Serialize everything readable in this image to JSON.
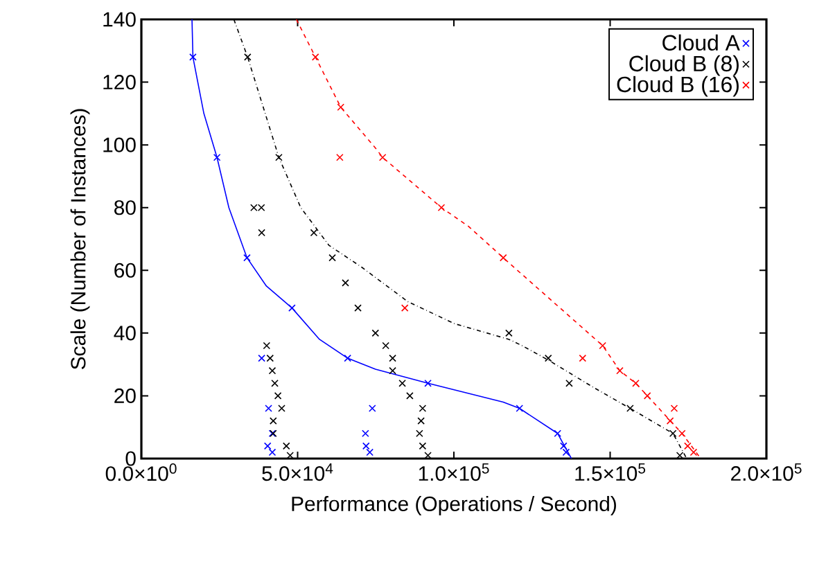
{
  "chart_data": {
    "type": "scatter",
    "xlabel": "Performance (Operations / Second)",
    "ylabel": "Scale (Number of Instances)",
    "xlim": [
      0,
      200000
    ],
    "ylim": [
      0,
      140
    ],
    "xticks": [
      {
        "value": 0,
        "label": "0.0×10$^{0}$"
      },
      {
        "value": 50000,
        "label": "5.0×10$^{4}$"
      },
      {
        "value": 100000,
        "label": "1.0×10$^{5}$"
      },
      {
        "value": 150000,
        "label": "1.5×10$^{5}$"
      },
      {
        "value": 200000,
        "label": "2.0×10$^{5}$"
      }
    ],
    "yticks": [
      0,
      20,
      40,
      60,
      80,
      100,
      120,
      140
    ],
    "grid": false,
    "legend": "top right",
    "series": [
      {
        "name": "Cloud A",
        "color": "#0000ff",
        "marker": "cross",
        "x": [
          16500,
          24200,
          33800,
          48200,
          66000,
          91700,
          121000,
          133200,
          135100,
          135900,
          38500,
          40700,
          41900,
          40400,
          41900,
          73900,
          71700,
          71900,
          73100
        ],
        "values": [
          128,
          96,
          64,
          48,
          32,
          24,
          16,
          8,
          4,
          2,
          32,
          16,
          8,
          4,
          2,
          16,
          8,
          4,
          2
        ]
      },
      {
        "name": "Cloud B (8)",
        "color": "#000000",
        "marker": "cross",
        "x": [
          34000,
          44000,
          36000,
          38400,
          38500,
          55200,
          61100,
          65300,
          69300,
          74900,
          78200,
          80400,
          80400,
          83500,
          85900,
          90000,
          89500,
          89000,
          90000,
          91700,
          117600,
          130200,
          136900,
          156400,
          170100,
          172300,
          40100,
          41200,
          41900,
          42700,
          43700,
          44900,
          42200,
          42200,
          46400,
          47600
        ],
        "values": [
          128,
          96,
          80,
          80,
          72,
          72,
          64,
          56,
          48,
          40,
          36,
          32,
          28,
          24,
          20,
          16,
          12,
          8,
          4,
          1,
          40,
          32,
          24,
          16,
          8,
          1,
          36,
          32,
          28,
          24,
          20,
          16,
          12,
          8,
          4,
          1
        ]
      },
      {
        "name": "Cloud B (16)",
        "color": "#ff0000",
        "marker": "cross",
        "x": [
          55700,
          63800,
          63500,
          77200,
          96000,
          115800,
          84300,
          147600,
          141200,
          153100,
          158200,
          161900,
          170500,
          169200,
          173000,
          174800,
          176700
        ],
        "values": [
          128,
          112,
          96,
          96,
          80,
          64,
          48,
          36,
          32,
          28,
          24,
          20,
          16,
          12,
          8,
          4,
          2
        ]
      },
      {
        "type": "line",
        "color": "#0000ff",
        "marker": "none",
        "line_style": "solid",
        "x": [
          16200,
          16500,
          20000,
          24200,
          28000,
          33800,
          40000,
          48200,
          57000,
          66000,
          74900,
          91700,
          115800,
          121000,
          133200,
          137600
        ],
        "values": [
          140,
          128,
          110,
          96,
          80,
          64,
          55,
          48,
          38,
          32,
          28.5,
          24,
          18,
          16,
          8,
          0
        ]
      },
      {
        "type": "line",
        "color": "#000000",
        "marker": "none",
        "line_style": "dotted",
        "x": [
          29600,
          34000,
          44000,
          51000,
          60000,
          70500,
          85300,
          100200,
          117600,
          121800,
          130200,
          144800,
          156400,
          170100,
          174500
        ],
        "values": [
          140,
          128,
          96,
          80,
          68,
          61,
          50,
          43,
          38,
          36,
          31.4,
          22.6,
          16,
          8,
          0
        ]
      },
      {
        "type": "line",
        "color": "#ff0000",
        "marker": "none",
        "line_style": "dashed",
        "x": [
          49600,
          55700,
          63800,
          74900,
          77200,
          96000,
          104700,
          115800,
          147600,
          153100,
          158200,
          161900,
          173000,
          179000
        ],
        "values": [
          140,
          128,
          112,
          99,
          96,
          80,
          74,
          64,
          36,
          28,
          24,
          20,
          8,
          0
        ]
      }
    ]
  }
}
